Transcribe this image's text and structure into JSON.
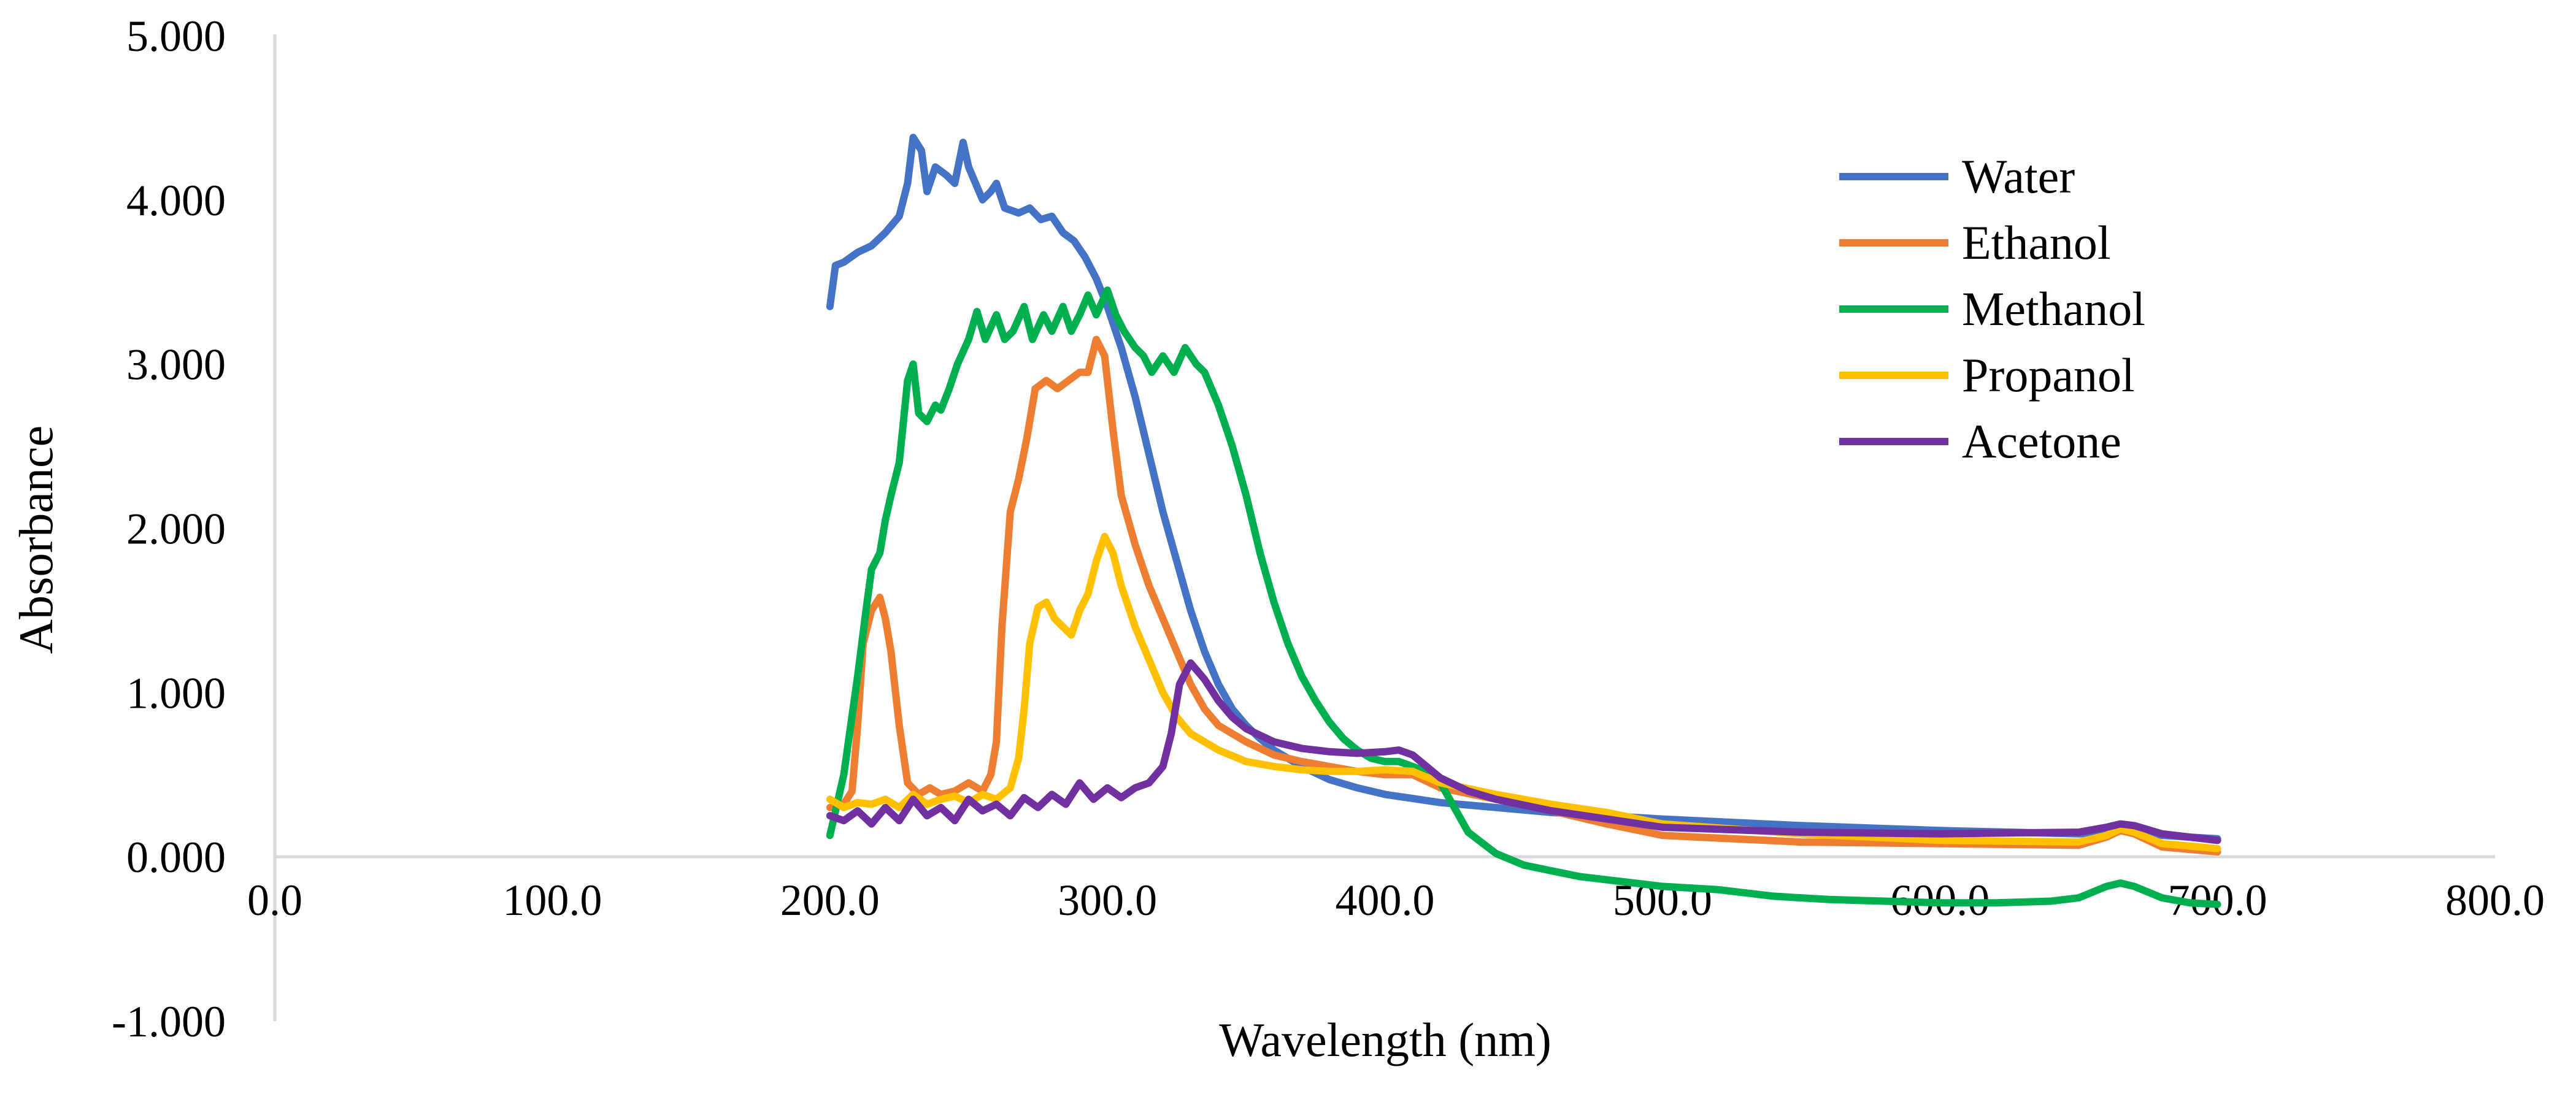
{
  "chart_data": {
    "type": "line",
    "title": "",
    "xlabel": "Wavelength (nm)",
    "ylabel": "Absorbance",
    "xlim": [
      0,
      800
    ],
    "ylim": [
      -1,
      5
    ],
    "x_ticks": [
      {
        "value": 0,
        "label": "0.0"
      },
      {
        "value": 100,
        "label": "100.0"
      },
      {
        "value": 200,
        "label": "200.0"
      },
      {
        "value": 300,
        "label": "300.0"
      },
      {
        "value": 400,
        "label": "400.0"
      },
      {
        "value": 500,
        "label": "500.0"
      },
      {
        "value": 600,
        "label": "600.0"
      },
      {
        "value": 700,
        "label": "700.0"
      },
      {
        "value": 800,
        "label": "800.0"
      }
    ],
    "y_ticks": [
      {
        "value": 5,
        "label": "5.000"
      },
      {
        "value": 4,
        "label": "4.000"
      },
      {
        "value": 3,
        "label": "3.000"
      },
      {
        "value": 2,
        "label": "2.000"
      },
      {
        "value": 1,
        "label": "1.000"
      },
      {
        "value": 0,
        "label": "0.000"
      },
      {
        "value": -1,
        "label": "-1.000"
      }
    ],
    "grid": false,
    "legend_position": "top-right",
    "series": [
      {
        "name": "Water",
        "color": "#4472C4",
        "points": [
          [
            200,
            3.35
          ],
          [
            202,
            3.6
          ],
          [
            205,
            3.62
          ],
          [
            210,
            3.68
          ],
          [
            215,
            3.72
          ],
          [
            220,
            3.8
          ],
          [
            225,
            3.9
          ],
          [
            228,
            4.1
          ],
          [
            230,
            4.38
          ],
          [
            233,
            4.3
          ],
          [
            235,
            4.05
          ],
          [
            238,
            4.2
          ],
          [
            242,
            4.15
          ],
          [
            245,
            4.1
          ],
          [
            248,
            4.35
          ],
          [
            250,
            4.2
          ],
          [
            255,
            4.0
          ],
          [
            258,
            4.05
          ],
          [
            260,
            4.1
          ],
          [
            263,
            3.95
          ],
          [
            268,
            3.92
          ],
          [
            272,
            3.95
          ],
          [
            276,
            3.88
          ],
          [
            280,
            3.9
          ],
          [
            284,
            3.8
          ],
          [
            288,
            3.75
          ],
          [
            292,
            3.65
          ],
          [
            296,
            3.52
          ],
          [
            300,
            3.35
          ],
          [
            305,
            3.1
          ],
          [
            310,
            2.8
          ],
          [
            315,
            2.45
          ],
          [
            320,
            2.1
          ],
          [
            325,
            1.8
          ],
          [
            330,
            1.5
          ],
          [
            335,
            1.25
          ],
          [
            340,
            1.05
          ],
          [
            345,
            0.9
          ],
          [
            350,
            0.8
          ],
          [
            355,
            0.72
          ],
          [
            360,
            0.65
          ],
          [
            370,
            0.55
          ],
          [
            380,
            0.47
          ],
          [
            390,
            0.42
          ],
          [
            400,
            0.38
          ],
          [
            420,
            0.33
          ],
          [
            440,
            0.3
          ],
          [
            460,
            0.27
          ],
          [
            480,
            0.25
          ],
          [
            500,
            0.23
          ],
          [
            550,
            0.19
          ],
          [
            600,
            0.16
          ],
          [
            650,
            0.14
          ],
          [
            660,
            0.15
          ],
          [
            665,
            0.18
          ],
          [
            670,
            0.17
          ],
          [
            680,
            0.13
          ],
          [
            700,
            0.11
          ]
        ]
      },
      {
        "name": "Ethanol",
        "color": "#ED7D31",
        "points": [
          [
            200,
            0.3
          ],
          [
            205,
            0.32
          ],
          [
            208,
            0.4
          ],
          [
            210,
            0.8
          ],
          [
            212,
            1.3
          ],
          [
            215,
            1.5
          ],
          [
            218,
            1.58
          ],
          [
            220,
            1.45
          ],
          [
            222,
            1.25
          ],
          [
            225,
            0.8
          ],
          [
            228,
            0.45
          ],
          [
            232,
            0.38
          ],
          [
            236,
            0.42
          ],
          [
            240,
            0.38
          ],
          [
            245,
            0.4
          ],
          [
            250,
            0.45
          ],
          [
            255,
            0.4
          ],
          [
            258,
            0.5
          ],
          [
            260,
            0.7
          ],
          [
            262,
            1.4
          ],
          [
            265,
            2.1
          ],
          [
            268,
            2.3
          ],
          [
            271,
            2.55
          ],
          [
            274,
            2.85
          ],
          [
            278,
            2.9
          ],
          [
            282,
            2.85
          ],
          [
            286,
            2.9
          ],
          [
            290,
            2.95
          ],
          [
            293,
            2.95
          ],
          [
            296,
            3.15
          ],
          [
            299,
            3.05
          ],
          [
            302,
            2.6
          ],
          [
            305,
            2.2
          ],
          [
            310,
            1.9
          ],
          [
            315,
            1.65
          ],
          [
            320,
            1.45
          ],
          [
            325,
            1.25
          ],
          [
            330,
            1.05
          ],
          [
            335,
            0.9
          ],
          [
            340,
            0.8
          ],
          [
            350,
            0.7
          ],
          [
            360,
            0.62
          ],
          [
            370,
            0.58
          ],
          [
            380,
            0.55
          ],
          [
            390,
            0.52
          ],
          [
            400,
            0.5
          ],
          [
            410,
            0.5
          ],
          [
            420,
            0.42
          ],
          [
            440,
            0.35
          ],
          [
            460,
            0.28
          ],
          [
            480,
            0.2
          ],
          [
            500,
            0.13
          ],
          [
            550,
            0.09
          ],
          [
            600,
            0.08
          ],
          [
            650,
            0.07
          ],
          [
            660,
            0.12
          ],
          [
            665,
            0.16
          ],
          [
            670,
            0.14
          ],
          [
            680,
            0.06
          ],
          [
            700,
            0.03
          ]
        ]
      },
      {
        "name": "Methanol",
        "color": "#00B050",
        "points": [
          [
            200,
            0.13
          ],
          [
            205,
            0.5
          ],
          [
            210,
            1.1
          ],
          [
            213,
            1.5
          ],
          [
            215,
            1.75
          ],
          [
            218,
            1.85
          ],
          [
            220,
            2.05
          ],
          [
            222,
            2.2
          ],
          [
            225,
            2.4
          ],
          [
            228,
            2.9
          ],
          [
            230,
            3.0
          ],
          [
            232,
            2.7
          ],
          [
            235,
            2.65
          ],
          [
            238,
            2.75
          ],
          [
            240,
            2.72
          ],
          [
            243,
            2.85
          ],
          [
            246,
            3.0
          ],
          [
            250,
            3.15
          ],
          [
            253,
            3.32
          ],
          [
            256,
            3.15
          ],
          [
            260,
            3.3
          ],
          [
            263,
            3.15
          ],
          [
            266,
            3.2
          ],
          [
            270,
            3.35
          ],
          [
            273,
            3.15
          ],
          [
            277,
            3.3
          ],
          [
            280,
            3.2
          ],
          [
            284,
            3.35
          ],
          [
            287,
            3.2
          ],
          [
            290,
            3.3
          ],
          [
            293,
            3.42
          ],
          [
            296,
            3.3
          ],
          [
            300,
            3.45
          ],
          [
            303,
            3.3
          ],
          [
            306,
            3.2
          ],
          [
            310,
            3.1
          ],
          [
            313,
            3.05
          ],
          [
            316,
            2.95
          ],
          [
            320,
            3.05
          ],
          [
            324,
            2.95
          ],
          [
            328,
            3.1
          ],
          [
            332,
            3.0
          ],
          [
            335,
            2.95
          ],
          [
            340,
            2.75
          ],
          [
            345,
            2.5
          ],
          [
            350,
            2.2
          ],
          [
            355,
            1.85
          ],
          [
            360,
            1.55
          ],
          [
            365,
            1.3
          ],
          [
            370,
            1.1
          ],
          [
            375,
            0.95
          ],
          [
            380,
            0.82
          ],
          [
            385,
            0.72
          ],
          [
            390,
            0.65
          ],
          [
            395,
            0.6
          ],
          [
            400,
            0.58
          ],
          [
            405,
            0.58
          ],
          [
            410,
            0.55
          ],
          [
            415,
            0.52
          ],
          [
            420,
            0.45
          ],
          [
            425,
            0.3
          ],
          [
            430,
            0.15
          ],
          [
            440,
            0.02
          ],
          [
            450,
            -0.05
          ],
          [
            470,
            -0.12
          ],
          [
            500,
            -0.18
          ],
          [
            520,
            -0.2
          ],
          [
            540,
            -0.24
          ],
          [
            560,
            -0.26
          ],
          [
            580,
            -0.27
          ],
          [
            600,
            -0.28
          ],
          [
            620,
            -0.28
          ],
          [
            640,
            -0.27
          ],
          [
            650,
            -0.25
          ],
          [
            660,
            -0.18
          ],
          [
            665,
            -0.16
          ],
          [
            670,
            -0.18
          ],
          [
            680,
            -0.25
          ],
          [
            690,
            -0.28
          ],
          [
            700,
            -0.29
          ]
        ]
      },
      {
        "name": "Propanol",
        "color": "#FFC000",
        "points": [
          [
            200,
            0.35
          ],
          [
            205,
            0.3
          ],
          [
            210,
            0.33
          ],
          [
            215,
            0.32
          ],
          [
            220,
            0.35
          ],
          [
            225,
            0.3
          ],
          [
            230,
            0.38
          ],
          [
            235,
            0.32
          ],
          [
            240,
            0.35
          ],
          [
            245,
            0.37
          ],
          [
            250,
            0.33
          ],
          [
            255,
            0.38
          ],
          [
            260,
            0.35
          ],
          [
            265,
            0.42
          ],
          [
            268,
            0.6
          ],
          [
            270,
            0.9
          ],
          [
            272,
            1.3
          ],
          [
            275,
            1.52
          ],
          [
            278,
            1.55
          ],
          [
            281,
            1.45
          ],
          [
            284,
            1.4
          ],
          [
            287,
            1.35
          ],
          [
            290,
            1.5
          ],
          [
            293,
            1.6
          ],
          [
            296,
            1.8
          ],
          [
            299,
            1.95
          ],
          [
            302,
            1.85
          ],
          [
            305,
            1.65
          ],
          [
            310,
            1.4
          ],
          [
            315,
            1.2
          ],
          [
            320,
            1.0
          ],
          [
            325,
            0.85
          ],
          [
            330,
            0.75
          ],
          [
            340,
            0.65
          ],
          [
            350,
            0.58
          ],
          [
            360,
            0.55
          ],
          [
            370,
            0.53
          ],
          [
            380,
            0.52
          ],
          [
            390,
            0.52
          ],
          [
            400,
            0.53
          ],
          [
            410,
            0.52
          ],
          [
            420,
            0.45
          ],
          [
            440,
            0.38
          ],
          [
            460,
            0.32
          ],
          [
            480,
            0.27
          ],
          [
            500,
            0.2
          ],
          [
            550,
            0.14
          ],
          [
            600,
            0.1
          ],
          [
            650,
            0.09
          ],
          [
            660,
            0.13
          ],
          [
            665,
            0.17
          ],
          [
            670,
            0.15
          ],
          [
            680,
            0.08
          ],
          [
            700,
            0.05
          ]
        ]
      },
      {
        "name": "Acetone",
        "color": "#7030A0",
        "points": [
          [
            200,
            0.25
          ],
          [
            205,
            0.22
          ],
          [
            210,
            0.28
          ],
          [
            215,
            0.2
          ],
          [
            220,
            0.3
          ],
          [
            225,
            0.22
          ],
          [
            230,
            0.35
          ],
          [
            235,
            0.25
          ],
          [
            240,
            0.3
          ],
          [
            245,
            0.22
          ],
          [
            250,
            0.35
          ],
          [
            255,
            0.28
          ],
          [
            260,
            0.32
          ],
          [
            265,
            0.25
          ],
          [
            270,
            0.36
          ],
          [
            275,
            0.3
          ],
          [
            280,
            0.38
          ],
          [
            285,
            0.32
          ],
          [
            290,
            0.45
          ],
          [
            295,
            0.35
          ],
          [
            300,
            0.42
          ],
          [
            305,
            0.36
          ],
          [
            310,
            0.42
          ],
          [
            315,
            0.45
          ],
          [
            320,
            0.55
          ],
          [
            323,
            0.75
          ],
          [
            326,
            1.05
          ],
          [
            330,
            1.18
          ],
          [
            335,
            1.08
          ],
          [
            340,
            0.95
          ],
          [
            345,
            0.85
          ],
          [
            350,
            0.78
          ],
          [
            360,
            0.7
          ],
          [
            370,
            0.66
          ],
          [
            380,
            0.64
          ],
          [
            390,
            0.63
          ],
          [
            400,
            0.64
          ],
          [
            405,
            0.65
          ],
          [
            410,
            0.62
          ],
          [
            415,
            0.55
          ],
          [
            420,
            0.48
          ],
          [
            430,
            0.4
          ],
          [
            440,
            0.35
          ],
          [
            460,
            0.28
          ],
          [
            480,
            0.23
          ],
          [
            500,
            0.18
          ],
          [
            550,
            0.15
          ],
          [
            600,
            0.14
          ],
          [
            650,
            0.15
          ],
          [
            660,
            0.18
          ],
          [
            665,
            0.2
          ],
          [
            670,
            0.19
          ],
          [
            680,
            0.14
          ],
          [
            700,
            0.1
          ]
        ]
      }
    ]
  }
}
